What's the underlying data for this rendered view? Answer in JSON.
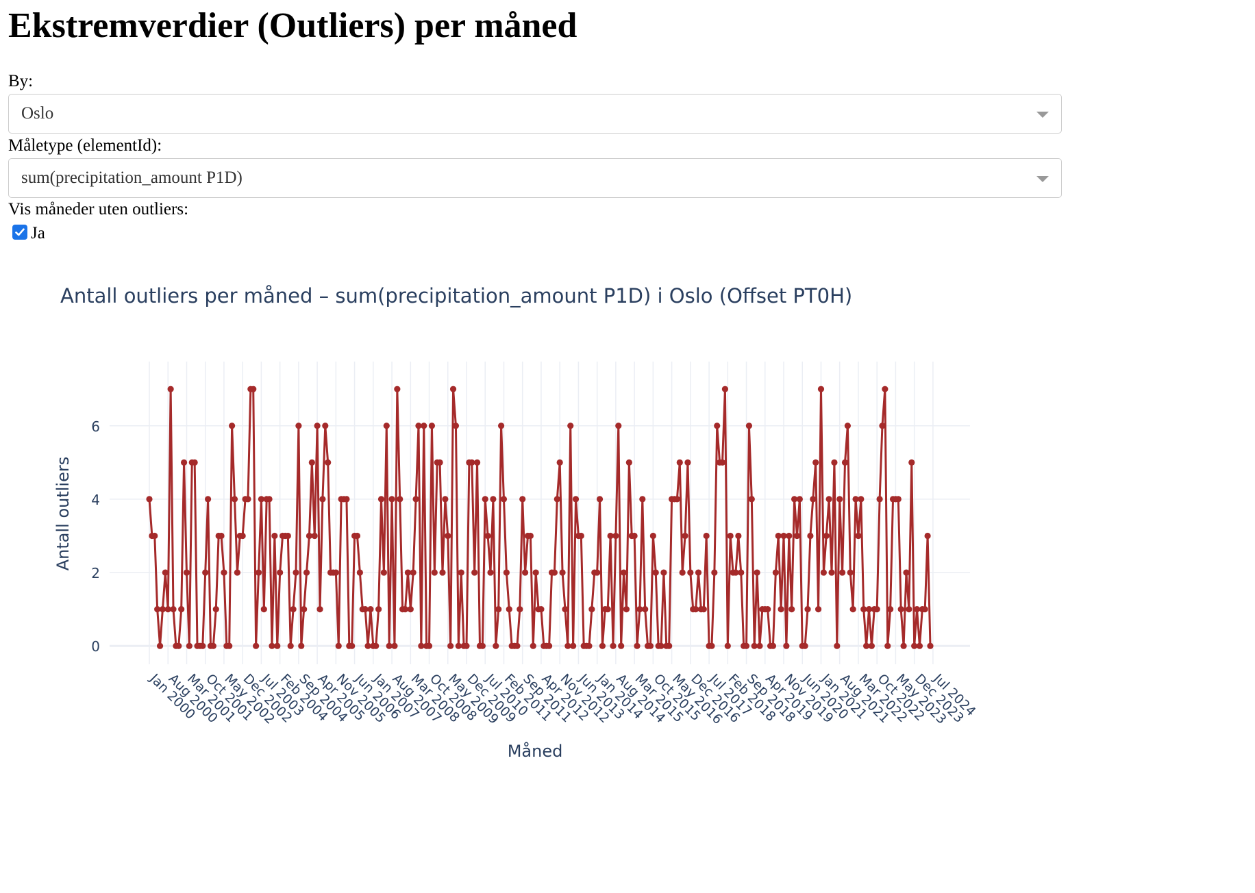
{
  "page": {
    "heading": "Ekstremverdier (Outliers) per måned"
  },
  "controls": {
    "city": {
      "label": "By:",
      "value": "Oslo"
    },
    "element": {
      "label": "Måletype (elementId):",
      "value": "sum(precipitation_amount P1D)"
    },
    "show_empty": {
      "label": "Vis måneder uten outliers:",
      "option_label": "Ja",
      "checked": true
    }
  },
  "colors": {
    "line": "#a52a2a",
    "grid": "#ebeef4",
    "text": "#2a3f5f",
    "checkbox": "#1a73e8"
  },
  "chart_data": {
    "type": "line",
    "title": "Antall outliers per måned – sum(precipitation_amount P1D) i Oslo (Offset PT0H)",
    "xlabel": "Måned",
    "ylabel": "Antall outliers",
    "x_start": "2000-01",
    "ylim": [
      -0.5,
      7.75
    ],
    "yticks": [
      0,
      2,
      4,
      6
    ],
    "grid": true,
    "x_tick_labels": [
      "Jan 2000",
      "Aug 2000",
      "Mar 2001",
      "Oct 2001",
      "May 2002",
      "Dec 2002",
      "Jul 2003",
      "Feb 2004",
      "Sep 2004",
      "Apr 2005",
      "Nov 2005",
      "Jun 2006",
      "Jan 2007",
      "Aug 2007",
      "Mar 2008",
      "Oct 2008",
      "May 2009",
      "Dec 2009",
      "Jul 2010",
      "Feb 2011",
      "Sep 2011",
      "Apr 2012",
      "Nov 2012",
      "Jun 2013",
      "Jan 2014",
      "Aug 2014",
      "Mar 2015",
      "Oct 2015",
      "May 2016",
      "Dec 2016",
      "Jul 2017",
      "Feb 2018",
      "Sep 2018",
      "Apr 2019",
      "Nov 2019",
      "Jun 2020",
      "Jan 2021",
      "Aug 2021",
      "Mar 2022",
      "Oct 2022",
      "May 2023",
      "Dec 2023",
      "Jul 2024"
    ],
    "series": [
      {
        "values": [
          4,
          3,
          3,
          1,
          0,
          1,
          2,
          1,
          7,
          1,
          0,
          0,
          1,
          5,
          2,
          0,
          5,
          5,
          0,
          0,
          0,
          2,
          4,
          0,
          0,
          1,
          3,
          3,
          2,
          0,
          0,
          6,
          4,
          2,
          3,
          3,
          4,
          4,
          7,
          7,
          0,
          2,
          4,
          1,
          4,
          4,
          0,
          3,
          0,
          2,
          3,
          3,
          3,
          0,
          1,
          2,
          6,
          0,
          1,
          2,
          3,
          5,
          3,
          6,
          1,
          4,
          6,
          5,
          2,
          2,
          2,
          0,
          4,
          4,
          4,
          0,
          0,
          3,
          3,
          2,
          1,
          1,
          0,
          1,
          0,
          0,
          1,
          4,
          2,
          6,
          0,
          4,
          0,
          7,
          4,
          1,
          1,
          2,
          1,
          2,
          4,
          6,
          0,
          6,
          0,
          0,
          6,
          2,
          5,
          5,
          2,
          4,
          3,
          0,
          7,
          6,
          0,
          2,
          0,
          0,
          5,
          5,
          2,
          5,
          0,
          0,
          4,
          3,
          2,
          4,
          0,
          1,
          6,
          4,
          2,
          1,
          0,
          0,
          0,
          1,
          4,
          2,
          3,
          3,
          0,
          2,
          1,
          1,
          0,
          0,
          0,
          2,
          2,
          4,
          5,
          2,
          1,
          0,
          6,
          0,
          4,
          3,
          3,
          0,
          0,
          0,
          1,
          2,
          2,
          4,
          0,
          1,
          1,
          3,
          0,
          3,
          6,
          0,
          2,
          1,
          5,
          3,
          3,
          0,
          1,
          4,
          1,
          0,
          0,
          3,
          2,
          0,
          0,
          2,
          0,
          0,
          4,
          4,
          4,
          5,
          2,
          3,
          5,
          2,
          1,
          1,
          2,
          1,
          1,
          3,
          0,
          0,
          2,
          6,
          5,
          5,
          7,
          0,
          3,
          2,
          2,
          3,
          2,
          0,
          0,
          6,
          4,
          0,
          2,
          0,
          1,
          1,
          1,
          0,
          0,
          2,
          3,
          1,
          3,
          0,
          3,
          1,
          4,
          3,
          4,
          0,
          0,
          1,
          3,
          4,
          5,
          1,
          7,
          2,
          3,
          4,
          2,
          5,
          0,
          4,
          2,
          5,
          6,
          2,
          1,
          4,
          3,
          4,
          1,
          0,
          1,
          0,
          1,
          1,
          4,
          6,
          7,
          0,
          1,
          4,
          4,
          4,
          1,
          0,
          2,
          1,
          5,
          0,
          1,
          0,
          1,
          1,
          3,
          0
        ]
      }
    ]
  }
}
